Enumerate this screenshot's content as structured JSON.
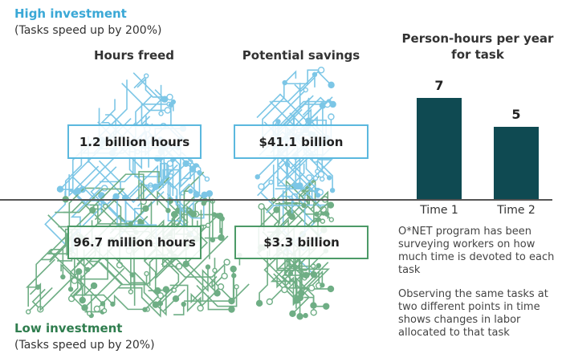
{
  "high": {
    "title": "High investment",
    "subtitle": "(Tasks speed up by 200%)",
    "hours": "1.2 billion hours",
    "savings": "$41.1 billion"
  },
  "low": {
    "title": "Low investment",
    "subtitle": "(Tasks speed up by 20%)",
    "hours": "96.7 million hours",
    "savings": "$3.3 billion"
  },
  "columns": {
    "hours": "Hours freed",
    "savings": "Potential savings"
  },
  "colors": {
    "blue": "#3aa8d6",
    "green": "#2f7d4e",
    "bar": "#0f4a52"
  },
  "notes": [
    "O*NET program has been surveying workers on how much time is devoted to each task",
    "Observing the same tasks at two different points in time shows changes in labor allocated to that task"
  ],
  "chart_data": {
    "type": "bar",
    "title": "Person-hours per year for task",
    "categories": [
      "Time 1",
      "Time 2"
    ],
    "values": [
      7,
      5
    ],
    "data_labels": [
      "7",
      "5"
    ],
    "xlabel": "",
    "ylabel": "",
    "ylim": [
      0,
      7
    ]
  }
}
